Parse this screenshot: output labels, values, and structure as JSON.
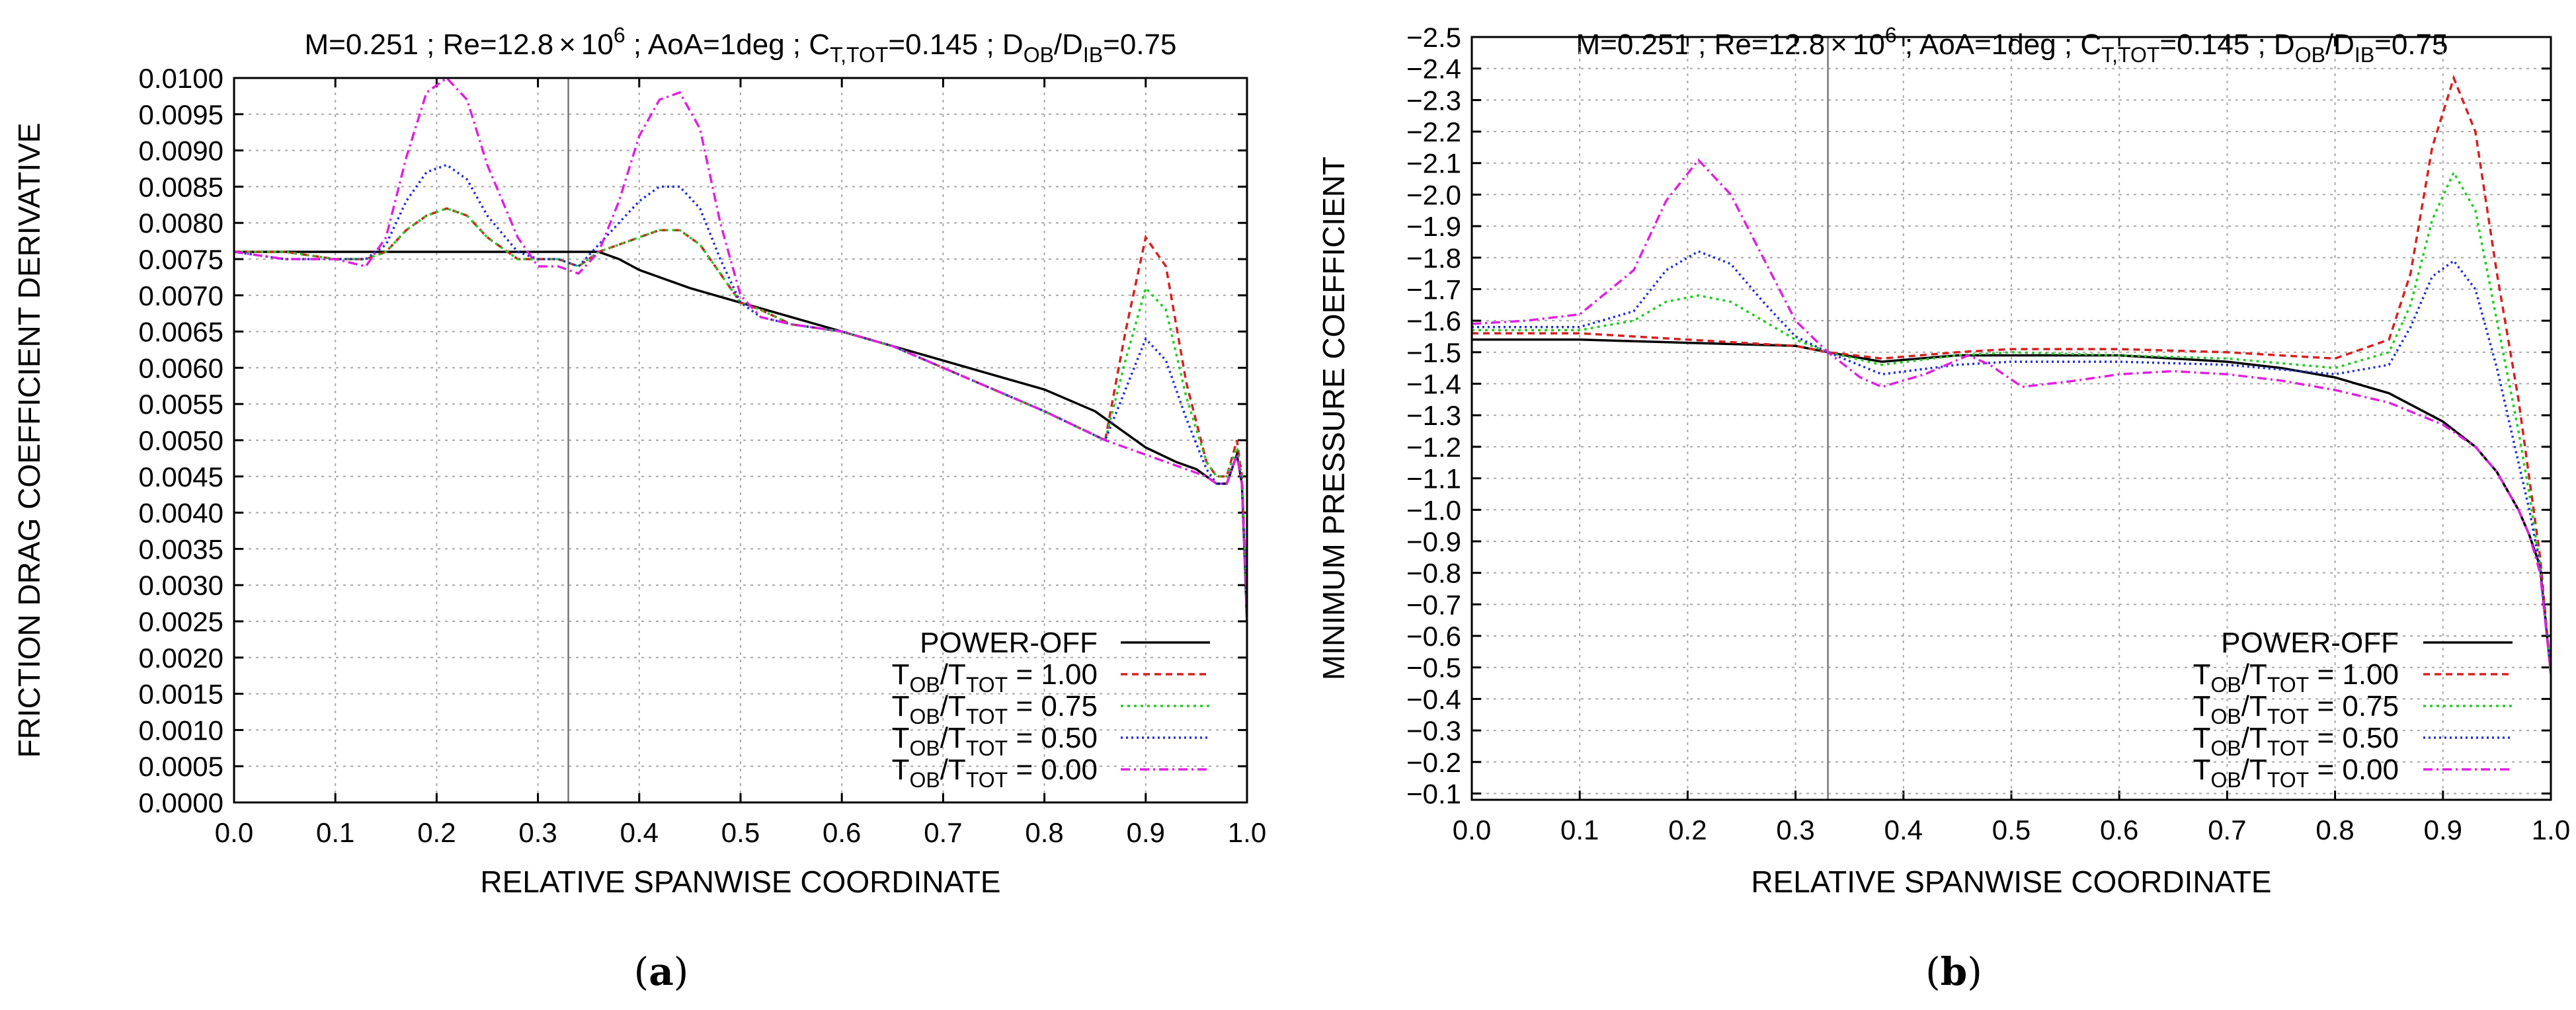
{
  "chart_data": [
    {
      "id": "a",
      "type": "line",
      "title": {
        "main": "M=0.251 ; Re=12.8",
        "times": "×",
        "ten": "10",
        "exp": "6",
        "aoa": " ; AoA=1deg ; C",
        "ct_sub": "T,TOT",
        "ct_val": "=0.145 ; D",
        "d1_sub": "OB",
        "slash": "/D",
        "d2_sub": "IB",
        "d_val": "=0.75"
      },
      "xlabel": "RELATIVE SPANWISE COORDINATE",
      "ylabel": "FRICTION DRAG COEFFICIENT DERIVATIVE",
      "caption": "a",
      "xlim": [
        0,
        1
      ],
      "ylim": [
        0,
        0.01
      ],
      "inverted_y": false,
      "x_ticks": [
        "0.0",
        "0.1",
        "0.2",
        "0.3",
        "0.4",
        "0.5",
        "0.6",
        "0.7",
        "0.8",
        "0.9",
        "1.0"
      ],
      "y_ticks": [
        "0.0000",
        "0.0005",
        "0.0010",
        "0.0015",
        "0.0020",
        "0.0025",
        "0.0030",
        "0.0035",
        "0.0040",
        "0.0045",
        "0.0050",
        "0.0055",
        "0.0060",
        "0.0065",
        "0.0070",
        "0.0075",
        "0.0080",
        "0.0085",
        "0.0090",
        "0.0095",
        "0.0100"
      ],
      "vline_x": 0.33,
      "series": [
        {
          "name": "POWER-OFF",
          "color": "#000000",
          "dash": "",
          "x": [
            0,
            0.05,
            0.1,
            0.15,
            0.2,
            0.25,
            0.3,
            0.33,
            0.36,
            0.38,
            0.4,
            0.45,
            0.5,
            0.55,
            0.6,
            0.65,
            0.7,
            0.75,
            0.8,
            0.85,
            0.9,
            0.93,
            0.95,
            0.97,
            0.98,
            0.99,
            0.995,
            1.0
          ],
          "y": [
            0.0076,
            0.0076,
            0.0076,
            0.0076,
            0.0076,
            0.0076,
            0.0076,
            0.0076,
            0.0076,
            0.0075,
            0.00735,
            0.0071,
            0.0069,
            0.0067,
            0.0065,
            0.0063,
            0.0061,
            0.0059,
            0.0057,
            0.0054,
            0.0049,
            0.0047,
            0.0046,
            0.0044,
            0.0044,
            0.0048,
            0.0044,
            0.0025
          ]
        },
        {
          "name": "T_OB/T_TOT = 1.00",
          "color": "#d62020",
          "dash": "10 7",
          "x": [
            0,
            0.05,
            0.1,
            0.13,
            0.15,
            0.17,
            0.19,
            0.21,
            0.23,
            0.25,
            0.28,
            0.3,
            0.32,
            0.34,
            0.36,
            0.38,
            0.4,
            0.42,
            0.44,
            0.46,
            0.48,
            0.5,
            0.52,
            0.55,
            0.6,
            0.65,
            0.7,
            0.75,
            0.8,
            0.83,
            0.86,
            0.88,
            0.9,
            0.92,
            0.94,
            0.96,
            0.97,
            0.98,
            0.99,
            0.995,
            1.0
          ],
          "y": [
            0.0076,
            0.0076,
            0.0075,
            0.0075,
            0.0076,
            0.0079,
            0.0081,
            0.0082,
            0.0081,
            0.0078,
            0.0075,
            0.0075,
            0.0075,
            0.0074,
            0.0076,
            0.0077,
            0.0078,
            0.0079,
            0.0079,
            0.0077,
            0.0073,
            0.0069,
            0.0068,
            0.0066,
            0.0065,
            0.0063,
            0.006,
            0.0057,
            0.0054,
            0.0052,
            0.005,
            0.0065,
            0.0078,
            0.0074,
            0.0058,
            0.0047,
            0.0045,
            0.0045,
            0.005,
            0.0045,
            0.0027
          ]
        },
        {
          "name": "T_OB/T_TOT = 0.75",
          "color": "#22cc22",
          "dash": "4 6",
          "x": [
            0,
            0.05,
            0.1,
            0.13,
            0.15,
            0.17,
            0.19,
            0.21,
            0.23,
            0.25,
            0.28,
            0.3,
            0.32,
            0.34,
            0.36,
            0.38,
            0.4,
            0.42,
            0.44,
            0.46,
            0.48,
            0.5,
            0.52,
            0.55,
            0.6,
            0.65,
            0.7,
            0.75,
            0.8,
            0.83,
            0.86,
            0.88,
            0.9,
            0.92,
            0.94,
            0.96,
            0.97,
            0.98,
            0.99,
            0.995,
            1.0
          ],
          "y": [
            0.0076,
            0.0076,
            0.0075,
            0.0075,
            0.0076,
            0.0079,
            0.0081,
            0.0082,
            0.0081,
            0.0078,
            0.0075,
            0.0075,
            0.0075,
            0.0074,
            0.0076,
            0.0077,
            0.0078,
            0.0079,
            0.0079,
            0.0077,
            0.0073,
            0.0069,
            0.0068,
            0.0066,
            0.0065,
            0.0063,
            0.006,
            0.0057,
            0.0054,
            0.0052,
            0.005,
            0.0061,
            0.0071,
            0.0068,
            0.0056,
            0.0047,
            0.0045,
            0.0045,
            0.0049,
            0.0045,
            0.0027
          ]
        },
        {
          "name": "T_OB/T_TOT = 0.50",
          "color": "#2030d6",
          "dash": "3 5",
          "x": [
            0,
            0.05,
            0.1,
            0.13,
            0.15,
            0.17,
            0.19,
            0.21,
            0.23,
            0.25,
            0.28,
            0.3,
            0.32,
            0.34,
            0.36,
            0.38,
            0.4,
            0.42,
            0.44,
            0.46,
            0.48,
            0.5,
            0.52,
            0.55,
            0.6,
            0.65,
            0.7,
            0.75,
            0.8,
            0.83,
            0.86,
            0.88,
            0.9,
            0.92,
            0.94,
            0.96,
            0.97,
            0.98,
            0.99,
            0.995,
            1.0
          ],
          "y": [
            0.0076,
            0.0075,
            0.0075,
            0.0075,
            0.0077,
            0.0083,
            0.0087,
            0.0088,
            0.0086,
            0.0081,
            0.0076,
            0.0075,
            0.0075,
            0.0074,
            0.0077,
            0.008,
            0.0083,
            0.0085,
            0.0085,
            0.0082,
            0.0075,
            0.0069,
            0.0067,
            0.0066,
            0.0065,
            0.0063,
            0.006,
            0.0057,
            0.0054,
            0.0052,
            0.005,
            0.0057,
            0.0064,
            0.0061,
            0.0053,
            0.0046,
            0.0044,
            0.0044,
            0.0048,
            0.0044,
            0.0026
          ]
        },
        {
          "name": "T_OB/T_TOT = 0.00",
          "color": "#e020e0",
          "dash": "14 6 3 6",
          "x": [
            0,
            0.05,
            0.1,
            0.13,
            0.15,
            0.17,
            0.19,
            0.21,
            0.23,
            0.25,
            0.28,
            0.3,
            0.32,
            0.34,
            0.36,
            0.38,
            0.4,
            0.42,
            0.44,
            0.46,
            0.48,
            0.5,
            0.52,
            0.55,
            0.6,
            0.65,
            0.7,
            0.75,
            0.8,
            0.83,
            0.86,
            0.88,
            0.9,
            0.92,
            0.94,
            0.96,
            0.97,
            0.98,
            0.99,
            0.995,
            1.0
          ],
          "y": [
            0.0076,
            0.0075,
            0.0075,
            0.0074,
            0.0078,
            0.0089,
            0.0098,
            0.01,
            0.0097,
            0.0088,
            0.0078,
            0.0074,
            0.0074,
            0.0073,
            0.0076,
            0.0083,
            0.0092,
            0.0097,
            0.0098,
            0.0093,
            0.008,
            0.007,
            0.0067,
            0.0066,
            0.0065,
            0.0063,
            0.006,
            0.0057,
            0.0054,
            0.0052,
            0.005,
            0.0049,
            0.0048,
            0.0047,
            0.0046,
            0.0045,
            0.0044,
            0.0044,
            0.0048,
            0.0044,
            0.0026
          ]
        }
      ],
      "legend": {
        "position": "bottom-right",
        "entries": [
          {
            "main": "POWER-OFF",
            "sub1": "",
            "mid": "",
            "sub2": "",
            "val": ""
          },
          {
            "main": "T",
            "sub1": "OB",
            "mid": "/T",
            "sub2": "TOT",
            "val": " = 1.00"
          },
          {
            "main": "T",
            "sub1": "OB",
            "mid": "/T",
            "sub2": "TOT",
            "val": " = 0.75"
          },
          {
            "main": "T",
            "sub1": "OB",
            "mid": "/T",
            "sub2": "TOT",
            "val": " = 0.50"
          },
          {
            "main": "T",
            "sub1": "OB",
            "mid": "/T",
            "sub2": "TOT",
            "val": " = 0.00"
          }
        ]
      }
    },
    {
      "id": "b",
      "type": "line",
      "title": {
        "main": "M=0.251 ; Re=12.8",
        "times": "×",
        "ten": "10",
        "exp": "6",
        "aoa": " ; AoA=1deg ; C",
        "ct_sub": "T,TOT",
        "ct_val": "=0.145 ; D",
        "d1_sub": "OB",
        "slash": "/D",
        "d2_sub": "IB",
        "d_val": "=0.75"
      },
      "xlabel": "RELATIVE SPANWISE COORDINATE",
      "ylabel": "MINIMUM PRESSURE COEFFICIENT",
      "caption": "b",
      "xlim": [
        0,
        1
      ],
      "ylim": [
        -0.08,
        -2.5
      ],
      "inverted_y": true,
      "x_ticks": [
        "0.0",
        "0.1",
        "0.2",
        "0.3",
        "0.4",
        "0.5",
        "0.6",
        "0.7",
        "0.8",
        "0.9",
        "1.0"
      ],
      "y_ticks": [
        "−0.1",
        "−0.2",
        "−0.3",
        "−0.4",
        "−0.5",
        "−0.6",
        "−0.7",
        "−0.8",
        "−0.9",
        "−1.0",
        "−1.1",
        "−1.2",
        "−1.3",
        "−1.4",
        "−1.5",
        "−1.6",
        "−1.7",
        "−1.8",
        "−1.9",
        "−2.0",
        "−2.1",
        "−2.2",
        "−2.3",
        "−2.4",
        "−2.5"
      ],
      "y_tick_values": [
        -0.1,
        -0.2,
        -0.3,
        -0.4,
        -0.5,
        -0.6,
        -0.7,
        -0.8,
        -0.9,
        -1.0,
        -1.1,
        -1.2,
        -1.3,
        -1.4,
        -1.5,
        -1.6,
        -1.7,
        -1.8,
        -1.9,
        -2.0,
        -2.1,
        -2.2,
        -2.3,
        -2.4,
        -2.5
      ],
      "vline_x": 0.33,
      "series": [
        {
          "name": "POWER-OFF",
          "color": "#000000",
          "dash": "",
          "x": [
            0,
            0.1,
            0.2,
            0.3,
            0.33,
            0.38,
            0.45,
            0.5,
            0.6,
            0.7,
            0.75,
            0.8,
            0.85,
            0.9,
            0.93,
            0.95,
            0.97,
            0.98,
            0.99,
            1.0
          ],
          "y": [
            -1.54,
            -1.54,
            -1.53,
            -1.52,
            -1.5,
            -1.47,
            -1.49,
            -1.49,
            -1.49,
            -1.47,
            -1.45,
            -1.42,
            -1.37,
            -1.28,
            -1.2,
            -1.12,
            -1.0,
            -0.92,
            -0.82,
            -0.48
          ]
        },
        {
          "name": "T_OB/T_TOT = 1.00",
          "color": "#d62020",
          "dash": "10 7",
          "x": [
            0,
            0.05,
            0.1,
            0.15,
            0.2,
            0.25,
            0.3,
            0.33,
            0.38,
            0.45,
            0.5,
            0.6,
            0.7,
            0.8,
            0.85,
            0.87,
            0.89,
            0.91,
            0.93,
            0.95,
            0.97,
            0.98,
            0.99,
            1.0
          ],
          "y": [
            -1.56,
            -1.56,
            -1.56,
            -1.55,
            -1.54,
            -1.53,
            -1.52,
            -1.5,
            -1.48,
            -1.5,
            -1.51,
            -1.51,
            -1.5,
            -1.48,
            -1.54,
            -1.75,
            -2.15,
            -2.37,
            -2.2,
            -1.75,
            -1.35,
            -1.1,
            -0.85,
            -0.48
          ]
        },
        {
          "name": "T_OB/T_TOT = 0.75",
          "color": "#22cc22",
          "dash": "4 6",
          "x": [
            0,
            0.05,
            0.1,
            0.15,
            0.18,
            0.21,
            0.24,
            0.27,
            0.3,
            0.33,
            0.38,
            0.45,
            0.5,
            0.6,
            0.7,
            0.8,
            0.85,
            0.87,
            0.89,
            0.91,
            0.93,
            0.95,
            0.97,
            0.98,
            0.99,
            1.0
          ],
          "y": [
            -1.57,
            -1.57,
            -1.57,
            -1.6,
            -1.66,
            -1.68,
            -1.66,
            -1.6,
            -1.54,
            -1.5,
            -1.46,
            -1.49,
            -1.5,
            -1.49,
            -1.48,
            -1.45,
            -1.5,
            -1.65,
            -1.92,
            -2.07,
            -1.95,
            -1.6,
            -1.25,
            -1.05,
            -0.82,
            -0.48
          ]
        },
        {
          "name": "T_OB/T_TOT = 0.50",
          "color": "#2030d6",
          "dash": "3 5",
          "x": [
            0,
            0.05,
            0.1,
            0.15,
            0.18,
            0.21,
            0.24,
            0.27,
            0.3,
            0.33,
            0.38,
            0.45,
            0.5,
            0.6,
            0.7,
            0.8,
            0.85,
            0.87,
            0.89,
            0.91,
            0.93,
            0.95,
            0.97,
            0.98,
            0.99,
            1.0
          ],
          "y": [
            -1.58,
            -1.58,
            -1.58,
            -1.63,
            -1.76,
            -1.82,
            -1.78,
            -1.66,
            -1.55,
            -1.5,
            -1.43,
            -1.46,
            -1.47,
            -1.47,
            -1.46,
            -1.43,
            -1.46,
            -1.58,
            -1.74,
            -1.79,
            -1.7,
            -1.45,
            -1.15,
            -1.0,
            -0.82,
            -0.48
          ]
        },
        {
          "name": "T_OB/T_TOT = 0.00",
          "color": "#e020e0",
          "dash": "14 6 3 6",
          "x": [
            0,
            0.05,
            0.1,
            0.15,
            0.18,
            0.21,
            0.24,
            0.27,
            0.3,
            0.33,
            0.36,
            0.38,
            0.42,
            0.46,
            0.48,
            0.51,
            0.56,
            0.6,
            0.65,
            0.7,
            0.75,
            0.8,
            0.85,
            0.9,
            0.93,
            0.95,
            0.97,
            0.98,
            0.99,
            1.0
          ],
          "y": [
            -1.59,
            -1.6,
            -1.62,
            -1.76,
            -1.98,
            -2.11,
            -2.0,
            -1.8,
            -1.6,
            -1.5,
            -1.42,
            -1.39,
            -1.43,
            -1.49,
            -1.46,
            -1.39,
            -1.41,
            -1.43,
            -1.44,
            -1.43,
            -1.41,
            -1.38,
            -1.34,
            -1.27,
            -1.2,
            -1.12,
            -1.0,
            -0.92,
            -0.8,
            -0.48
          ]
        }
      ],
      "legend": {
        "position": "bottom-right",
        "entries": [
          {
            "main": "POWER-OFF",
            "sub1": "",
            "mid": "",
            "sub2": "",
            "val": ""
          },
          {
            "main": "T",
            "sub1": "OB",
            "mid": "/T",
            "sub2": "TOT",
            "val": " = 1.00"
          },
          {
            "main": "T",
            "sub1": "OB",
            "mid": "/T",
            "sub2": "TOT",
            "val": " = 0.75"
          },
          {
            "main": "T",
            "sub1": "OB",
            "mid": "/T",
            "sub2": "TOT",
            "val": " = 0.50"
          },
          {
            "main": "T",
            "sub1": "OB",
            "mid": "/T",
            "sub2": "TOT",
            "val": " = 0.00"
          }
        ]
      }
    }
  ]
}
